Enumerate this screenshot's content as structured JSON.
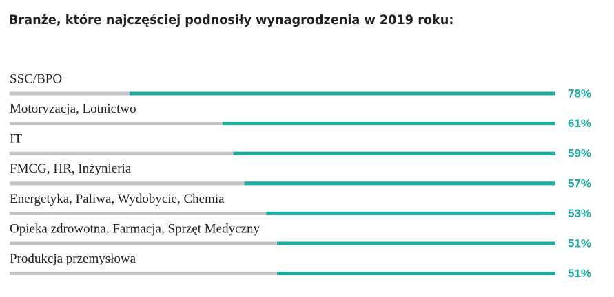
{
  "chart_data": {
    "type": "bar",
    "title": "Branże, które najczęściej podnosiły wynagrodzenia w 2019 roku:",
    "categories": [
      "SSC/BPO",
      "Motoryzacja, Lotnictwo",
      "IT",
      "FMCG, HR, Inżynieria",
      "Energetyka, Paliwa, Wydobycie, Chemia",
      "Opieka zdrowotna, Farmacja, Sprzęt Medyczny",
      "Produkcja przemysłowa"
    ],
    "values": [
      78,
      61,
      59,
      57,
      53,
      51,
      51
    ],
    "value_labels": [
      "78%",
      "61%",
      "59%",
      "57%",
      "53%",
      "51%",
      "51%"
    ],
    "color": "#1aada0",
    "track_color": "#c3c3c3",
    "xlim": [
      0,
      100
    ]
  }
}
